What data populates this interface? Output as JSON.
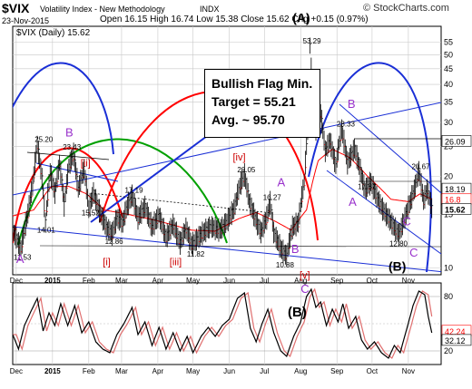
{
  "header": {
    "symbol": "$VIX",
    "name": "Volatility Index - New Methodology",
    "exchange": "INDX",
    "watermark": "© StockCharts.com",
    "date": "23-Nov-2015",
    "open_label": "Open",
    "open": "16.15",
    "high_label": "High",
    "high": "16.74",
    "low_label": "Low",
    "low": "15.38",
    "close_label": "Close",
    "close": "15.62",
    "chg_label": "Chg",
    "chg": "+0.15 (0.97%)"
  },
  "legend": "$VIX (Daily) 15.62",
  "annotation": {
    "line1": "Bullish Flag Min.",
    "line2": "Target = 55.21",
    "line3": "Avg. ~ 95.70"
  },
  "colors": {
    "price": "#000000",
    "ma_red": "#ff0000",
    "blue": "#1a2fd6",
    "green": "#00a000",
    "purple": "#9932cc",
    "darkred": "#cc0000",
    "bg": "#ffffff",
    "grid": "#c8c8c8",
    "osc_pink": "#e07070"
  },
  "chart_data": [
    {
      "type": "line",
      "title": "$VIX (Daily)",
      "scale": "log",
      "ylim": [
        9.5,
        62
      ],
      "y_ticks": [
        "55",
        "50",
        "45",
        "40",
        "35",
        "30",
        "25",
        "20",
        "15",
        "10"
      ],
      "x_ticks": [
        "Dec",
        "2015",
        "Feb",
        "Mar",
        "Apr",
        "May",
        "Jun",
        "Jul",
        "Aug",
        "Sep",
        "Oct",
        "Nov"
      ],
      "x_tick_days": [
        0,
        31,
        62,
        90,
        121,
        151,
        182,
        212,
        243,
        274,
        304,
        335
      ],
      "x_range_days": [
        -3,
        363
      ],
      "price_anchors": [
        {
          "day": -3,
          "v": 13.2
        },
        {
          "day": 4,
          "v": 11.53
        },
        {
          "day": 10,
          "v": 15.0
        },
        {
          "day": 14,
          "v": 18.5
        },
        {
          "day": 18,
          "v": 25.2
        },
        {
          "day": 22,
          "v": 19.5
        },
        {
          "day": 25,
          "v": 14.01
        },
        {
          "day": 29,
          "v": 20.5
        },
        {
          "day": 33,
          "v": 17.5
        },
        {
          "day": 37,
          "v": 22.0
        },
        {
          "day": 41,
          "v": 16.0
        },
        {
          "day": 45,
          "v": 21.5
        },
        {
          "day": 49,
          "v": 23.43
        },
        {
          "day": 53,
          "v": 18.0
        },
        {
          "day": 58,
          "v": 21.0
        },
        {
          "day": 62,
          "v": 15.52
        },
        {
          "day": 66,
          "v": 17.5
        },
        {
          "day": 71,
          "v": 15.3
        },
        {
          "day": 77,
          "v": 13.5
        },
        {
          "day": 82,
          "v": 12.86
        },
        {
          "day": 86,
          "v": 14.5
        },
        {
          "day": 91,
          "v": 14.0
        },
        {
          "day": 94,
          "v": 15.5
        },
        {
          "day": 99,
          "v": 17.19
        },
        {
          "day": 104,
          "v": 14.5
        },
        {
          "day": 110,
          "v": 15.8
        },
        {
          "day": 116,
          "v": 13.5
        },
        {
          "day": 122,
          "v": 14.8
        },
        {
          "day": 128,
          "v": 12.5
        },
        {
          "day": 134,
          "v": 13.8
        },
        {
          "day": 140,
          "v": 12.0
        },
        {
          "day": 145,
          "v": 13.4
        },
        {
          "day": 150,
          "v": 11.82
        },
        {
          "day": 158,
          "v": 12.8
        },
        {
          "day": 166,
          "v": 13.6
        },
        {
          "day": 174,
          "v": 13.2
        },
        {
          "day": 180,
          "v": 14.1
        },
        {
          "day": 186,
          "v": 15.5
        },
        {
          "day": 191,
          "v": 18.5
        },
        {
          "day": 195,
          "v": 20.05
        },
        {
          "day": 199,
          "v": 16.5
        },
        {
          "day": 204,
          "v": 14.5
        },
        {
          "day": 209,
          "v": 13.0
        },
        {
          "day": 214,
          "v": 14.5
        },
        {
          "day": 217,
          "v": 16.27
        },
        {
          "day": 220,
          "v": 13.0
        },
        {
          "day": 226,
          "v": 11.5
        },
        {
          "day": 231,
          "v": 10.88
        },
        {
          "day": 236,
          "v": 13.5
        },
        {
          "day": 241,
          "v": 14.0
        },
        {
          "day": 246,
          "v": 19.0
        },
        {
          "day": 249,
          "v": 28.0
        },
        {
          "day": 251,
          "v": 53.29
        },
        {
          "day": 253,
          "v": 37.0
        },
        {
          "day": 256,
          "v": 28.0
        },
        {
          "day": 260,
          "v": 32.0
        },
        {
          "day": 264,
          "v": 24.0
        },
        {
          "day": 268,
          "v": 26.0
        },
        {
          "day": 273,
          "v": 21.5
        },
        {
          "day": 278,
          "v": 28.33
        },
        {
          "day": 283,
          "v": 22.0
        },
        {
          "day": 289,
          "v": 24.5
        },
        {
          "day": 295,
          "v": 20.0
        },
        {
          "day": 298,
          "v": 17.87
        },
        {
          "day": 303,
          "v": 19.0
        },
        {
          "day": 308,
          "v": 17.0
        },
        {
          "day": 313,
          "v": 15.5
        },
        {
          "day": 318,
          "v": 14.5
        },
        {
          "day": 323,
          "v": 13.5
        },
        {
          "day": 327,
          "v": 12.8
        },
        {
          "day": 332,
          "v": 14.5
        },
        {
          "day": 337,
          "v": 16.5
        },
        {
          "day": 341,
          "v": 18.5
        },
        {
          "day": 344,
          "v": 20.67
        },
        {
          "day": 348,
          "v": 16.5
        },
        {
          "day": 351,
          "v": 18.0
        },
        {
          "day": 355,
          "v": 15.62
        }
      ],
      "ma_anchors": [
        {
          "day": -3,
          "v": 14.8
        },
        {
          "day": 15,
          "v": 15.5
        },
        {
          "day": 30,
          "v": 18.5
        },
        {
          "day": 45,
          "v": 18.5
        },
        {
          "day": 60,
          "v": 17.5
        },
        {
          "day": 75,
          "v": 15.5
        },
        {
          "day": 95,
          "v": 15.0
        },
        {
          "day": 120,
          "v": 14.3
        },
        {
          "day": 150,
          "v": 13.3
        },
        {
          "day": 170,
          "v": 13.2
        },
        {
          "day": 190,
          "v": 14.5
        },
        {
          "day": 205,
          "v": 15.2
        },
        {
          "day": 220,
          "v": 14.3
        },
        {
          "day": 235,
          "v": 13.3
        },
        {
          "day": 248,
          "v": 15.5
        },
        {
          "day": 258,
          "v": 22.5
        },
        {
          "day": 270,
          "v": 24.5
        },
        {
          "day": 285,
          "v": 23.0
        },
        {
          "day": 300,
          "v": 20.0
        },
        {
          "day": 320,
          "v": 16.8
        },
        {
          "day": 335,
          "v": 16.5
        },
        {
          "day": 345,
          "v": 17.5
        },
        {
          "day": 355,
          "v": 16.8
        }
      ],
      "price_labels": [
        "25.20",
        "23.43",
        "14.01",
        "15.52",
        "11.53",
        "12.86",
        "17.19",
        "11.82",
        "20.05",
        "16.27",
        "10.88",
        "53.29",
        "28.33",
        "17.87",
        "12.80",
        "20.67"
      ],
      "right_labels": [
        "26.09",
        "20",
        "18.19",
        "16.8",
        "15.62"
      ],
      "wave_labels": [
        "(A)",
        "B",
        "A",
        "C",
        "A",
        "B",
        "B",
        "A",
        "C",
        "(B)",
        "[ii]",
        "[iv]",
        "[i]",
        "[iii]"
      ]
    },
    {
      "type": "line",
      "title": "Oscillator",
      "ylim": [
        5,
        95
      ],
      "y_ticks": [
        "80",
        "20"
      ],
      "x_ticks": [
        "Dec",
        "2015",
        "Feb",
        "Mar",
        "Apr",
        "May",
        "Jun",
        "Jul",
        "Aug",
        "Sep",
        "Oct",
        "Nov"
      ],
      "osc_anchors": [
        {
          "day": -3,
          "v": 38
        },
        {
          "day": 2,
          "v": 22
        },
        {
          "day": 7,
          "v": 48
        },
        {
          "day": 12,
          "v": 62
        },
        {
          "day": 18,
          "v": 78
        },
        {
          "day": 23,
          "v": 42
        },
        {
          "day": 28,
          "v": 62
        },
        {
          "day": 33,
          "v": 48
        },
        {
          "day": 38,
          "v": 72
        },
        {
          "day": 44,
          "v": 48
        },
        {
          "day": 50,
          "v": 70
        },
        {
          "day": 56,
          "v": 40
        },
        {
          "day": 62,
          "v": 52
        },
        {
          "day": 68,
          "v": 30
        },
        {
          "day": 74,
          "v": 22
        },
        {
          "day": 80,
          "v": 18
        },
        {
          "day": 86,
          "v": 38
        },
        {
          "day": 92,
          "v": 50
        },
        {
          "day": 99,
          "v": 68
        },
        {
          "day": 104,
          "v": 38
        },
        {
          "day": 110,
          "v": 52
        },
        {
          "day": 116,
          "v": 26
        },
        {
          "day": 122,
          "v": 46
        },
        {
          "day": 128,
          "v": 22
        },
        {
          "day": 134,
          "v": 40
        },
        {
          "day": 140,
          "v": 20
        },
        {
          "day": 146,
          "v": 36
        },
        {
          "day": 151,
          "v": 18
        },
        {
          "day": 158,
          "v": 36
        },
        {
          "day": 164,
          "v": 46
        },
        {
          "day": 170,
          "v": 36
        },
        {
          "day": 176,
          "v": 48
        },
        {
          "day": 182,
          "v": 55
        },
        {
          "day": 189,
          "v": 78
        },
        {
          "day": 195,
          "v": 84
        },
        {
          "day": 200,
          "v": 45
        },
        {
          "day": 205,
          "v": 30
        },
        {
          "day": 210,
          "v": 50
        },
        {
          "day": 215,
          "v": 66
        },
        {
          "day": 220,
          "v": 40
        },
        {
          "day": 226,
          "v": 20
        },
        {
          "day": 231,
          "v": 14
        },
        {
          "day": 237,
          "v": 36
        },
        {
          "day": 243,
          "v": 52
        },
        {
          "day": 248,
          "v": 80
        },
        {
          "day": 252,
          "v": 88
        },
        {
          "day": 256,
          "v": 68
        },
        {
          "day": 260,
          "v": 74
        },
        {
          "day": 265,
          "v": 48
        },
        {
          "day": 270,
          "v": 66
        },
        {
          "day": 275,
          "v": 52
        },
        {
          "day": 279,
          "v": 72
        },
        {
          "day": 284,
          "v": 45
        },
        {
          "day": 290,
          "v": 58
        },
        {
          "day": 295,
          "v": 32
        },
        {
          "day": 300,
          "v": 22
        },
        {
          "day": 306,
          "v": 30
        },
        {
          "day": 312,
          "v": 18
        },
        {
          "day": 318,
          "v": 12
        },
        {
          "day": 323,
          "v": 26
        },
        {
          "day": 328,
          "v": 18
        },
        {
          "day": 334,
          "v": 46
        },
        {
          "day": 339,
          "v": 70
        },
        {
          "day": 344,
          "v": 86
        },
        {
          "day": 349,
          "v": 82
        },
        {
          "day": 352,
          "v": 58
        },
        {
          "day": 355,
          "v": 40
        }
      ],
      "right_labels": [
        "80",
        "42.24",
        "32.12",
        "20"
      ],
      "wave_labels": [
        "[v]",
        "C",
        "(B)"
      ]
    }
  ]
}
